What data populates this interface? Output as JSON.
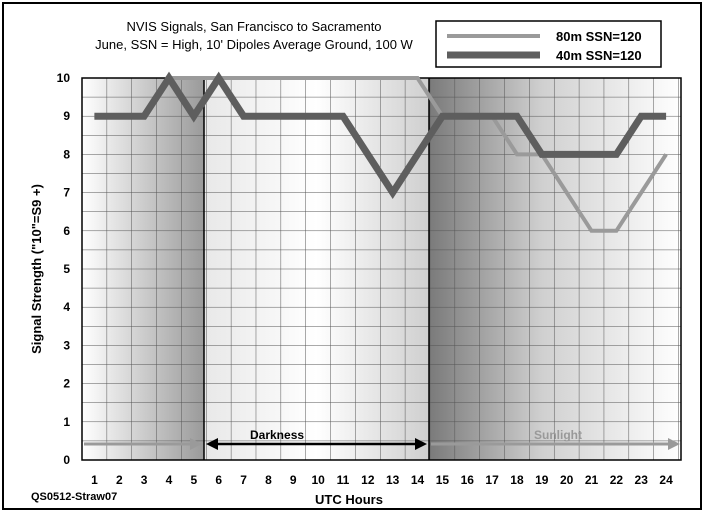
{
  "chart_data": {
    "type": "line",
    "title": "NVIS Signals, San Francisco to Sacramento",
    "subtitle": "June, SSN = High, 10' Dipoles Average Ground, 100 W",
    "xlabel": "UTC Hours",
    "ylabel": "Signal Strength (\"10\"=S9 +)",
    "x": [
      1,
      2,
      3,
      4,
      5,
      6,
      7,
      8,
      9,
      10,
      11,
      12,
      13,
      14,
      15,
      16,
      17,
      18,
      19,
      20,
      21,
      22,
      23,
      24
    ],
    "xlim": [
      0.5,
      24.6
    ],
    "ylim": [
      0,
      10
    ],
    "x_ticks": [
      "1",
      "2",
      "3",
      "4",
      "5",
      "6",
      "7",
      "8",
      "9",
      "10",
      "11",
      "12",
      "13",
      "14",
      "15",
      "16",
      "17",
      "18",
      "19",
      "20",
      "21",
      "22",
      "23",
      "24"
    ],
    "y_ticks": [
      "0",
      "1",
      "2",
      "3",
      "4",
      "5",
      "6",
      "7",
      "8",
      "9",
      "10"
    ],
    "grid": true,
    "legend_position": "top-right",
    "series": [
      {
        "name": "80m SSN=120",
        "color": "#9a9a9a",
        "values": [
          9,
          9,
          9,
          10,
          10,
          10,
          10,
          10,
          10,
          10,
          10,
          10,
          10,
          10,
          9,
          9,
          9,
          8,
          8,
          7,
          6,
          6,
          7,
          8
        ]
      },
      {
        "name": "40m SSN=120",
        "color": "#5e5e5e",
        "values": [
          9,
          9,
          9,
          10,
          9,
          10,
          9,
          9,
          9,
          9,
          9,
          8,
          7,
          8,
          9,
          9,
          9,
          9,
          8,
          8,
          8,
          8,
          9,
          9
        ]
      }
    ],
    "annotations": [
      {
        "label": "Darkness",
        "from": 5.5,
        "to": 14.5
      },
      {
        "label": "Sunlight",
        "from": 14.5,
        "to": 24.6
      }
    ],
    "note": "QS0512-Straw07"
  }
}
